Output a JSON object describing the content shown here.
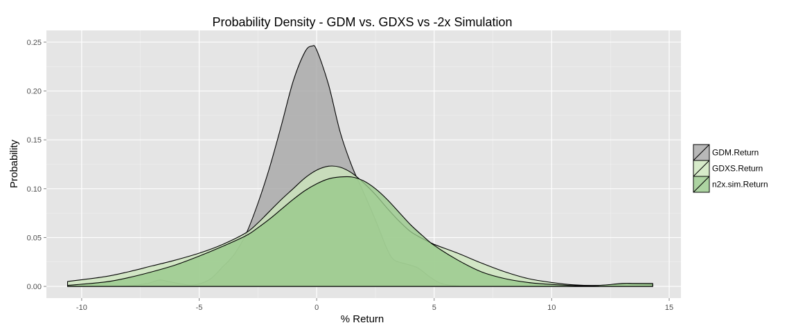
{
  "chart_data": {
    "type": "area",
    "title": "Probability Density - GDM vs. GDXS vs -2x Simulation",
    "xlabel": "% Return",
    "ylabel": "Probability",
    "xlim": [
      -11.5,
      15.5
    ],
    "ylim": [
      -0.012,
      0.262
    ],
    "x_ticks": [
      -10,
      -5,
      0,
      5,
      10,
      15
    ],
    "x_tick_labels": [
      "-10",
      "-5",
      "0",
      "5",
      "10",
      "15"
    ],
    "y_ticks": [
      0.0,
      0.05,
      0.1,
      0.15,
      0.2,
      0.25
    ],
    "y_tick_labels": [
      "0.00",
      "0.05",
      "0.10",
      "0.15",
      "0.20",
      "0.25"
    ],
    "grid": true,
    "legend_position": "right",
    "legend_entries": [
      "GDM.Return",
      "GDXS.Return",
      "n2x.sim.Return"
    ],
    "series": [
      {
        "name": "GDM.Return",
        "color": "#a6a6a6",
        "points": [
          [
            -10.6,
            0.0
          ],
          [
            -9,
            0.0
          ],
          [
            -8,
            0.0005
          ],
          [
            -7.2,
            0.003
          ],
          [
            -6.7,
            0.0065
          ],
          [
            -6.3,
            0.005
          ],
          [
            -5.5,
            0.0015
          ],
          [
            -5.0,
            0.0025
          ],
          [
            -4.5,
            0.008
          ],
          [
            -4.0,
            0.02
          ],
          [
            -3.5,
            0.033
          ],
          [
            -3.0,
            0.054
          ],
          [
            -2.5,
            0.085
          ],
          [
            -2.0,
            0.122
          ],
          [
            -1.5,
            0.165
          ],
          [
            -1.0,
            0.21
          ],
          [
            -0.5,
            0.24
          ],
          [
            -0.2,
            0.246
          ],
          [
            0.0,
            0.242
          ],
          [
            0.5,
            0.207
          ],
          [
            1.0,
            0.158
          ],
          [
            1.5,
            0.123
          ],
          [
            2.0,
            0.096
          ],
          [
            2.5,
            0.068
          ],
          [
            3.0,
            0.038
          ],
          [
            3.3,
            0.027
          ],
          [
            3.8,
            0.023
          ],
          [
            4.3,
            0.019
          ],
          [
            4.8,
            0.01
          ],
          [
            5.3,
            0.003
          ],
          [
            6.0,
            0.0005
          ],
          [
            7,
            0.0
          ],
          [
            14.3,
            0.0
          ]
        ]
      },
      {
        "name": "GDXS.Return",
        "color": "#cde6bd",
        "points": [
          [
            -10.6,
            0.005
          ],
          [
            -9,
            0.01
          ],
          [
            -8,
            0.015
          ],
          [
            -7,
            0.021
          ],
          [
            -6,
            0.027
          ],
          [
            -5,
            0.034
          ],
          [
            -4,
            0.043
          ],
          [
            -3,
            0.055
          ],
          [
            -2.5,
            0.065
          ],
          [
            -2,
            0.077
          ],
          [
            -1.5,
            0.089
          ],
          [
            -1,
            0.1
          ],
          [
            -0.5,
            0.111
          ],
          [
            0,
            0.119
          ],
          [
            0.5,
            0.123
          ],
          [
            1,
            0.122
          ],
          [
            1.5,
            0.116
          ],
          [
            2,
            0.106
          ],
          [
            2.5,
            0.094
          ],
          [
            3,
            0.08
          ],
          [
            3.5,
            0.067
          ],
          [
            4,
            0.056
          ],
          [
            4.5,
            0.049
          ],
          [
            5,
            0.043
          ],
          [
            6,
            0.034
          ],
          [
            7,
            0.024
          ],
          [
            8,
            0.015
          ],
          [
            9,
            0.008
          ],
          [
            10,
            0.004
          ],
          [
            11,
            0.0015
          ],
          [
            12,
            0.001
          ],
          [
            13,
            0.0025
          ],
          [
            13.5,
            0.0025
          ],
          [
            14.3,
            0.002
          ]
        ]
      },
      {
        "name": "n2x.sim.Return",
        "color": "#98c98b",
        "points": [
          [
            -10.6,
            0.001
          ],
          [
            -9,
            0.0045
          ],
          [
            -8,
            0.009
          ],
          [
            -7,
            0.015
          ],
          [
            -6,
            0.022
          ],
          [
            -5,
            0.031
          ],
          [
            -4,
            0.041
          ],
          [
            -3,
            0.052
          ],
          [
            -2.5,
            0.06
          ],
          [
            -2,
            0.069
          ],
          [
            -1.5,
            0.079
          ],
          [
            -1,
            0.089
          ],
          [
            -0.5,
            0.098
          ],
          [
            0,
            0.105
          ],
          [
            0.5,
            0.11
          ],
          [
            1,
            0.112
          ],
          [
            1.5,
            0.112
          ],
          [
            2,
            0.108
          ],
          [
            2.5,
            0.1
          ],
          [
            3,
            0.089
          ],
          [
            3.5,
            0.076
          ],
          [
            4,
            0.063
          ],
          [
            4.5,
            0.052
          ],
          [
            5,
            0.042
          ],
          [
            6,
            0.027
          ],
          [
            7,
            0.015
          ],
          [
            8,
            0.008
          ],
          [
            9,
            0.004
          ],
          [
            10,
            0.002
          ],
          [
            11,
            0.0008
          ],
          [
            12,
            0.001
          ],
          [
            13,
            0.003
          ],
          [
            13.5,
            0.003
          ],
          [
            14.3,
            0.003
          ]
        ]
      }
    ]
  }
}
